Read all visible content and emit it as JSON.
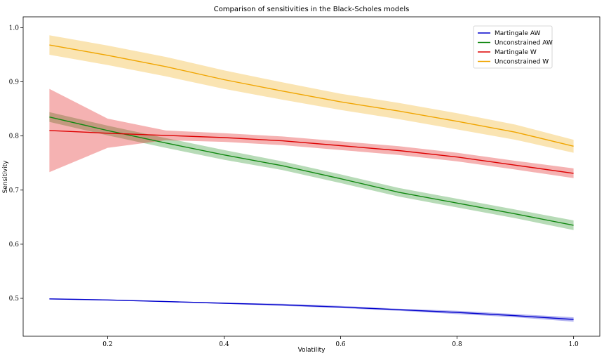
{
  "chart_data": {
    "type": "line",
    "title": "Comparison of sensitivities in the Black-Scholes models",
    "xlabel": "Volatility",
    "ylabel": "Sensitivity",
    "xlim": [
      0.055,
      1.045
    ],
    "ylim": [
      0.43,
      1.02
    ],
    "xticks": [
      0.2,
      0.4,
      0.6,
      0.8,
      1.0
    ],
    "xtick_labels": [
      "0.2",
      "0.4",
      "0.6",
      "0.8",
      "1.0"
    ],
    "yticks": [
      0.5,
      0.6,
      0.7,
      0.8,
      0.9,
      1.0
    ],
    "ytick_labels": [
      "0.5",
      "0.6",
      "0.7",
      "0.8",
      "0.9",
      "1.0"
    ],
    "grid": false,
    "legend_position": "top-right",
    "x": [
      0.1,
      0.2,
      0.3,
      0.4,
      0.5,
      0.6,
      0.7,
      0.8,
      0.9,
      1.0
    ],
    "series": [
      {
        "name": "Martingale AW",
        "color": "#0000cc",
        "values": [
          0.499,
          0.497,
          0.494,
          0.491,
          0.488,
          0.484,
          0.479,
          0.474,
          0.468,
          0.461
        ],
        "lower": [
          0.498,
          0.496,
          0.493,
          0.49,
          0.486,
          0.482,
          0.477,
          0.471,
          0.465,
          0.457
        ],
        "upper": [
          0.5,
          0.498,
          0.495,
          0.492,
          0.49,
          0.486,
          0.481,
          0.477,
          0.471,
          0.465
        ]
      },
      {
        "name": "Unconstrained AW",
        "color": "#118811",
        "values": [
          0.835,
          0.81,
          0.787,
          0.765,
          0.745,
          0.721,
          0.696,
          0.676,
          0.656,
          0.635
        ],
        "lower": [
          0.826,
          0.801,
          0.778,
          0.756,
          0.737,
          0.713,
          0.688,
          0.668,
          0.648,
          0.626
        ],
        "upper": [
          0.844,
          0.819,
          0.796,
          0.774,
          0.753,
          0.729,
          0.704,
          0.684,
          0.664,
          0.644
        ]
      },
      {
        "name": "Martingale W",
        "color": "#dd0000",
        "values": [
          0.81,
          0.805,
          0.801,
          0.797,
          0.791,
          0.782,
          0.773,
          0.761,
          0.746,
          0.731
        ],
        "lower": [
          0.733,
          0.778,
          0.792,
          0.789,
          0.783,
          0.774,
          0.765,
          0.753,
          0.738,
          0.722
        ],
        "upper": [
          0.887,
          0.832,
          0.81,
          0.805,
          0.799,
          0.79,
          0.781,
          0.769,
          0.754,
          0.74
        ]
      },
      {
        "name": "Unconstrained W",
        "color": "#f0a500",
        "values": [
          0.968,
          0.949,
          0.928,
          0.904,
          0.883,
          0.863,
          0.846,
          0.827,
          0.807,
          0.781
        ],
        "lower": [
          0.95,
          0.931,
          0.91,
          0.887,
          0.867,
          0.848,
          0.831,
          0.812,
          0.793,
          0.769
        ],
        "upper": [
          0.986,
          0.967,
          0.946,
          0.921,
          0.899,
          0.878,
          0.861,
          0.842,
          0.821,
          0.793
        ]
      }
    ]
  }
}
